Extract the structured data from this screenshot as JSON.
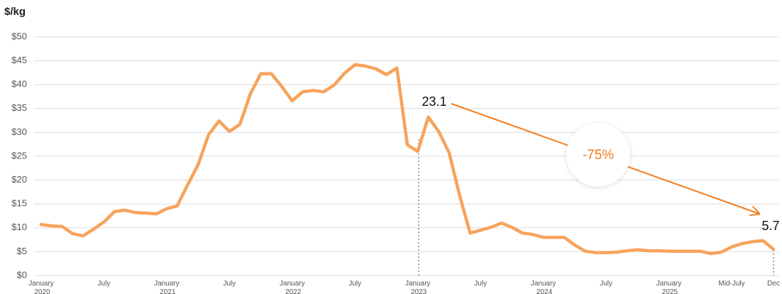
{
  "chart_data": {
    "type": "line",
    "y_label": "$/kg",
    "categories": [
      "January 2020",
      null,
      null,
      null,
      null,
      null,
      "July",
      null,
      null,
      null,
      null,
      null,
      "January 2021",
      null,
      null,
      null,
      null,
      null,
      "July",
      null,
      null,
      null,
      null,
      null,
      "January 2022",
      null,
      null,
      null,
      null,
      null,
      "July",
      null,
      null,
      null,
      null,
      null,
      "January 2023",
      null,
      null,
      null,
      null,
      null,
      "July",
      null,
      null,
      null,
      null,
      null,
      "January 2024",
      null,
      null,
      null,
      null,
      null,
      "July",
      null,
      null,
      null,
      null,
      null,
      "January 2025",
      null,
      null,
      null,
      null,
      null,
      "Mid-July",
      null,
      null,
      null,
      "Dec"
    ],
    "series": [
      {
        "name": "$/kg",
        "color": "#f7a35c",
        "values": [
          10.7,
          10.4,
          10.3,
          8.8,
          8.3,
          9.7,
          11.2,
          13.4,
          13.7,
          13.2,
          13.1,
          12.9,
          14.0,
          14.6,
          19.0,
          23.2,
          29.5,
          32.4,
          30.2,
          31.7,
          38.1,
          42.3,
          42.3,
          39.6,
          36.6,
          38.5,
          38.8,
          38.5,
          39.9,
          42.4,
          44.2,
          43.9,
          43.3,
          42.1,
          43.5,
          27.4,
          26.0,
          33.2,
          30.2,
          25.7,
          16.8,
          8.9,
          9.5,
          10.1,
          11.0,
          10.1,
          8.9,
          8.6,
          8.0,
          8.0,
          8.0,
          6.4,
          5.1,
          4.8,
          4.8,
          4.9,
          5.2,
          5.4,
          5.2,
          5.2,
          5.1,
          5.1,
          5.1,
          5.1,
          4.6,
          4.9,
          6.0,
          6.7,
          7.1,
          7.3,
          5.5
        ]
      }
    ],
    "ylim": [
      0,
      50
    ],
    "yticks": [
      {
        "value": 0,
        "label": "$0"
      },
      {
        "value": 5,
        "label": "$5"
      },
      {
        "value": 10,
        "label": "$10"
      },
      {
        "value": 15,
        "label": "$15"
      },
      {
        "value": 20,
        "label": "$20"
      },
      {
        "value": 25,
        "label": "$25"
      },
      {
        "value": 30,
        "label": "$30"
      },
      {
        "value": 35,
        "label": "$35"
      },
      {
        "value": 40,
        "label": "$40"
      },
      {
        "value": 45,
        "label": "$45"
      },
      {
        "value": 50,
        "label": "$50"
      }
    ],
    "grid": true,
    "annotations": [
      {
        "text": "23.1"
      },
      {
        "text": "5.7"
      },
      {
        "text": "-75%"
      }
    ]
  }
}
